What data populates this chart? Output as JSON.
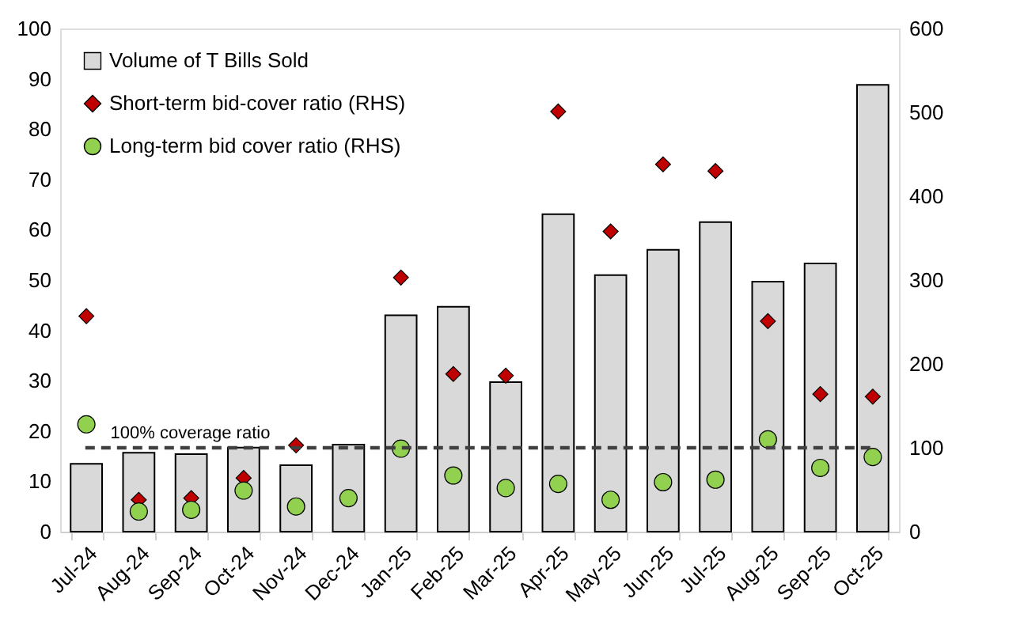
{
  "chart_data": {
    "type": "bar",
    "categories": [
      "Jul-24",
      "Aug-24",
      "Sep-24",
      "Oct-24",
      "Nov-24",
      "Dec-24",
      "Jan-25",
      "Feb-25",
      "Mar-25",
      "Apr-25",
      "May-25",
      "Jun-25",
      "Jul-25",
      "Aug-25",
      "Sep-25",
      "Oct-25"
    ],
    "series": [
      {
        "name": "Volume of T Bills Sold",
        "color": "#d9d9d9",
        "values": [
          13.5,
          15.7,
          15.4,
          16.7,
          13.2,
          17.3,
          43,
          44.7,
          29.7,
          63.1,
          51,
          56,
          61.5,
          49.7,
          53.3,
          88.8
        ]
      },
      {
        "name": "Short-term bid-cover ratio (RHS)",
        "type": "scatter",
        "axis": "y2",
        "marker": "diamond",
        "color": "#c00000",
        "values": [
          257,
          38,
          40,
          64,
          103,
          null,
          303,
          188,
          186,
          501,
          358,
          438,
          430,
          251,
          164,
          161
        ]
      },
      {
        "name": "Long-term bid cover ratio (RHS)",
        "type": "scatter",
        "axis": "y2",
        "marker": "circle",
        "color": "#92d050",
        "values": [
          128,
          24,
          26,
          49,
          30,
          40,
          99,
          67,
          52,
          57,
          38,
          59,
          62,
          110,
          76,
          89
        ]
      }
    ],
    "ylim": [
      0,
      100
    ],
    "yticks": [
      0,
      10,
      20,
      30,
      40,
      50,
      60,
      70,
      80,
      90,
      100
    ],
    "y2lim": [
      0,
      600
    ],
    "y2ticks": [
      0,
      100,
      200,
      300,
      400,
      500,
      600
    ],
    "ref_lines": [
      {
        "axis": "y2",
        "value": 100,
        "label": "100% coverage ratio",
        "color": "#404040",
        "line_style": "dashed"
      }
    ],
    "legend": "top left",
    "grid": false
  }
}
